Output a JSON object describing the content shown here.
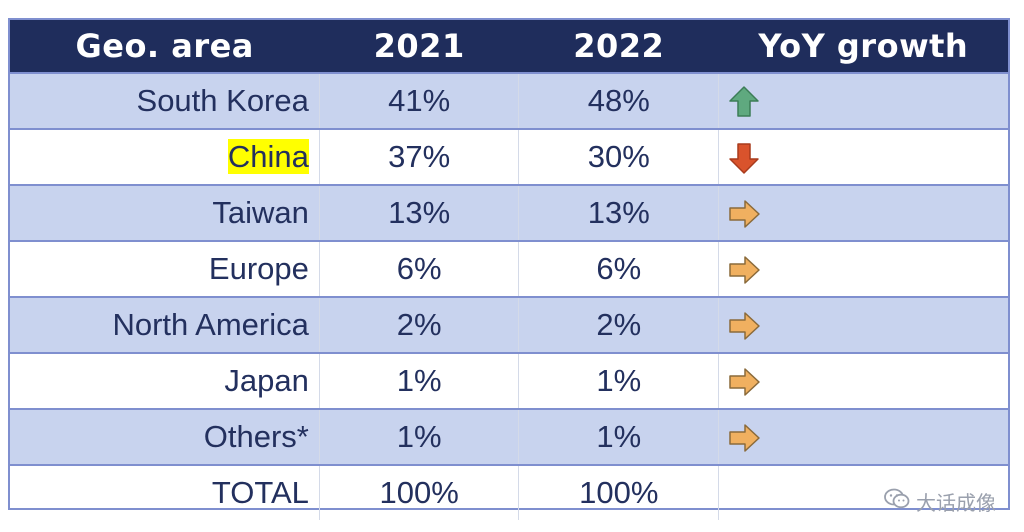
{
  "chart_data": {
    "type": "table",
    "columns": [
      "Geo. area",
      "2021",
      "2022",
      "YoY growth"
    ],
    "rows": [
      {
        "area": "South Korea",
        "y2021": "41%",
        "y2022": "48%",
        "trend": "up",
        "highlight": false
      },
      {
        "area": "China",
        "y2021": "37%",
        "y2022": "30%",
        "trend": "down",
        "highlight": true
      },
      {
        "area": "Taiwan",
        "y2021": "13%",
        "y2022": "13%",
        "trend": "flat",
        "highlight": false
      },
      {
        "area": "Europe",
        "y2021": "6%",
        "y2022": "6%",
        "trend": "flat",
        "highlight": false
      },
      {
        "area": "North America",
        "y2021": "2%",
        "y2022": "2%",
        "trend": "flat",
        "highlight": false
      },
      {
        "area": "Japan",
        "y2021": "1%",
        "y2022": "1%",
        "trend": "flat",
        "highlight": false
      },
      {
        "area": "Others*",
        "y2021": "1%",
        "y2022": "1%",
        "trend": "flat",
        "highlight": false
      },
      {
        "area": "TOTAL",
        "y2021": "100%",
        "y2022": "100%",
        "trend": "none",
        "highlight": false
      }
    ]
  },
  "colors": {
    "header_bg": "#1f2d5c",
    "row_alt_bg": "#c8d3ee",
    "text": "#23305e",
    "highlight": "#ffff00",
    "arrow_up": "#5fa97f",
    "arrow_down": "#d9532c",
    "arrow_flat": "#f0b060"
  },
  "watermark": {
    "icon": "wechat-icon",
    "text": "大话成像"
  }
}
